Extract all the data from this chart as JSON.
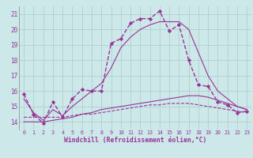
{
  "xlabel": "Windchill (Refroidissement éolien,°C)",
  "background_color": "#cce8e8",
  "grid_color": "#aacccc",
  "line_color": "#993399",
  "xlim": [
    -0.5,
    23.5
  ],
  "ylim": [
    13.5,
    21.5
  ],
  "yticks": [
    14,
    15,
    16,
    17,
    18,
    19,
    20,
    21
  ],
  "xticks": [
    0,
    1,
    2,
    3,
    4,
    5,
    6,
    7,
    8,
    9,
    10,
    11,
    12,
    13,
    14,
    15,
    16,
    17,
    18,
    19,
    20,
    21,
    22,
    23
  ],
  "line_main_x": [
    0,
    1,
    2,
    3,
    4,
    5,
    6,
    7,
    8,
    9,
    10,
    11,
    12,
    13,
    14,
    15,
    16,
    17,
    18,
    19,
    20,
    21,
    22,
    23
  ],
  "line_main_y": [
    15.8,
    14.5,
    13.9,
    15.3,
    14.3,
    15.5,
    16.1,
    16.0,
    16.0,
    19.1,
    19.4,
    20.4,
    20.7,
    20.7,
    21.2,
    19.9,
    20.3,
    18.0,
    16.4,
    16.3,
    15.3,
    15.1,
    14.6,
    14.7
  ],
  "line_smooth_x": [
    0,
    1,
    2,
    3,
    4,
    5,
    6,
    7,
    8,
    9,
    10,
    11,
    12,
    13,
    14,
    15,
    16,
    17,
    18,
    19,
    20,
    21,
    22,
    23
  ],
  "line_smooth_y": [
    15.5,
    14.6,
    14.1,
    14.8,
    14.4,
    15.0,
    15.5,
    16.0,
    16.5,
    17.5,
    18.8,
    19.5,
    20.0,
    20.3,
    20.5,
    20.5,
    20.5,
    20.0,
    18.5,
    17.0,
    16.0,
    15.5,
    15.0,
    14.8
  ],
  "line_lower1_x": [
    0,
    1,
    2,
    3,
    4,
    5,
    6,
    7,
    8,
    9,
    10,
    11,
    12,
    13,
    14,
    15,
    16,
    17,
    18,
    19,
    20,
    21,
    22,
    23
  ],
  "line_lower1_y": [
    14.0,
    14.0,
    14.0,
    14.1,
    14.2,
    14.3,
    14.5,
    14.6,
    14.8,
    14.9,
    15.0,
    15.1,
    15.2,
    15.3,
    15.4,
    15.5,
    15.6,
    15.7,
    15.7,
    15.6,
    15.4,
    15.2,
    15.0,
    14.8
  ],
  "line_lower2_x": [
    0,
    1,
    2,
    3,
    4,
    5,
    6,
    7,
    8,
    9,
    10,
    11,
    12,
    13,
    14,
    15,
    16,
    17,
    18,
    19,
    20,
    21,
    22,
    23
  ],
  "line_lower2_y": [
    14.3,
    14.3,
    14.3,
    14.3,
    14.3,
    14.4,
    14.5,
    14.5,
    14.6,
    14.7,
    14.8,
    14.9,
    15.0,
    15.1,
    15.1,
    15.2,
    15.2,
    15.2,
    15.1,
    15.0,
    14.9,
    14.8,
    14.7,
    14.6
  ]
}
